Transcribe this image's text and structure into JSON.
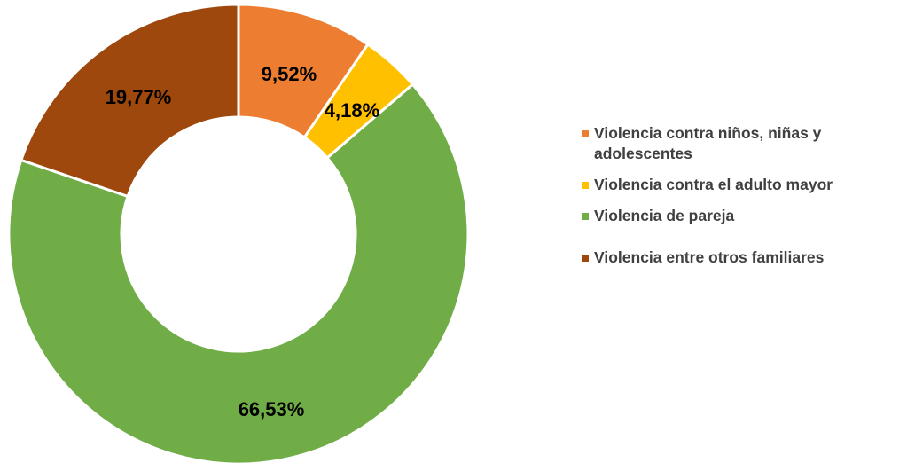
{
  "chart_data": {
    "type": "pie",
    "donut": true,
    "title": "",
    "slices": [
      {
        "name": "Violencia contra niños, niñas y adolescentes",
        "value": 9.52,
        "label": "9,52%",
        "color": "#ED7D31"
      },
      {
        "name": "Violencia contra el adulto mayor",
        "value": 4.18,
        "label": "4,18%",
        "color": "#FFC000"
      },
      {
        "name": "Violencia de pareja",
        "value": 66.53,
        "label": "66,53%",
        "color": "#70AD47"
      },
      {
        "name": "Violencia entre otros familiares",
        "value": 19.77,
        "label": "19,77%",
        "color": "#9E480E"
      }
    ],
    "legend_position": "right"
  }
}
